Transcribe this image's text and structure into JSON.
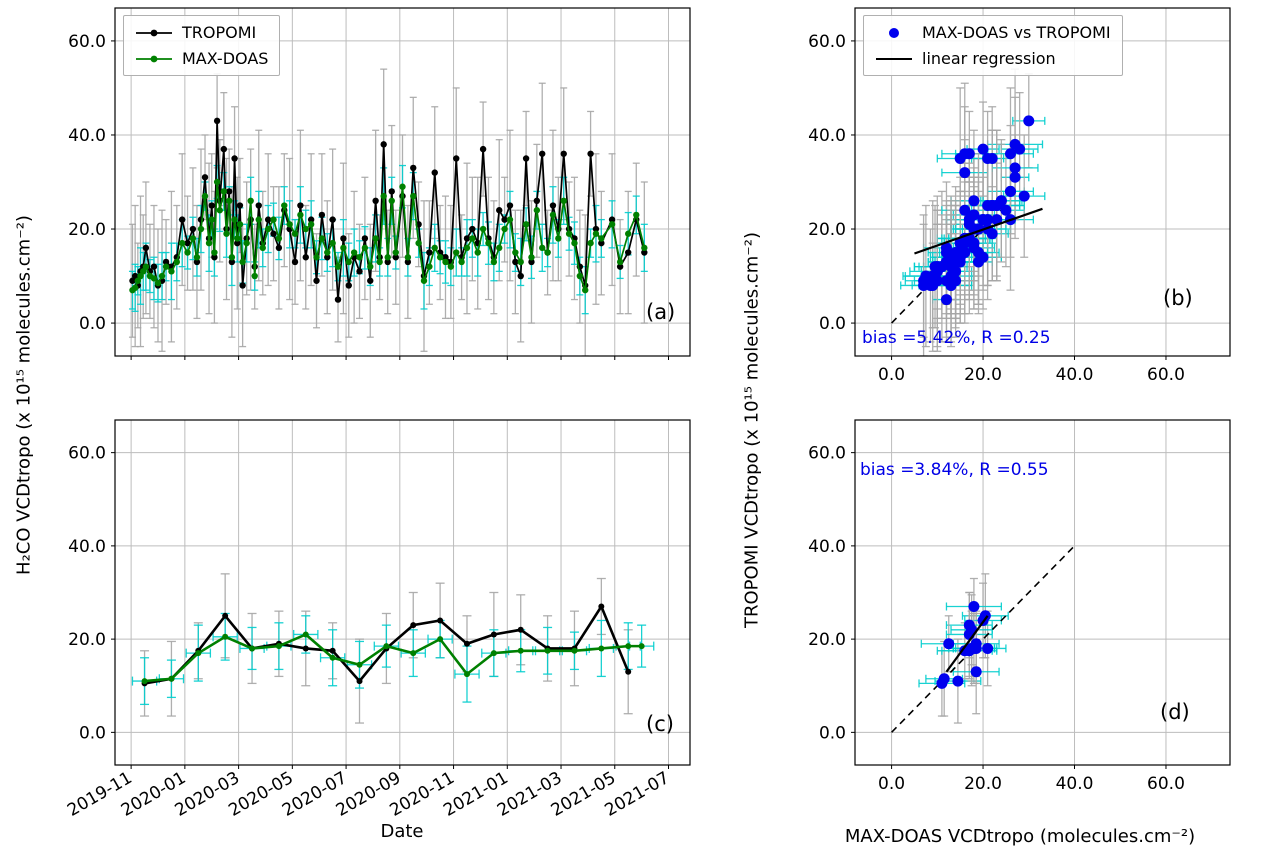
{
  "figure": {
    "ylabel_left": "H₂CO VCDtropo (x 10¹⁵ molecules.cm⁻²)",
    "ylabel_right": "TROPOMI VCDtropo (x 10¹⁵ molecules.cm⁻²)",
    "xlabel_left": "Date",
    "xlabel_right": "MAX-DOAS VCDtropo (molecules.cm⁻²)"
  },
  "panel_labels": {
    "a": "(a)",
    "b": "(b)",
    "c": "(c)",
    "d": "(d)"
  },
  "annotations": {
    "bias_b": "bias =5.42%, R =0.25",
    "bias_d": "bias =3.84%, R =0.55"
  },
  "legend_a": {
    "items": [
      {
        "label": "TROPOMI"
      },
      {
        "label": "MAX-DOAS"
      }
    ]
  },
  "legend_b": {
    "items": [
      {
        "label": "MAX-DOAS vs TROPOMI"
      },
      {
        "label": "linear regression"
      }
    ]
  },
  "colors": {
    "tropomi": "#000000",
    "maxdoas": "#008000",
    "scatter_points": "#0000ee",
    "tropomi_err": "#a6a6a6",
    "maxdoas_err": "#00cdcd",
    "grid": "#bdbdbd",
    "regression": "#000000",
    "identity": "#000000",
    "annotation_blue": "#0000e6"
  },
  "chart_data": [
    {
      "id": "a",
      "type": "line",
      "panel_label": "(a)",
      "xlim": [
        -0.6,
        20.8
      ],
      "ylim": [
        -7,
        67
      ],
      "xticks": [
        0,
        2,
        4,
        6,
        8,
        10,
        12,
        14,
        16,
        18,
        20
      ],
      "xtick_labels": [],
      "yticks": [
        0,
        20,
        40,
        60
      ],
      "ytick_labels": [
        "0.0",
        "20.0",
        "40.0",
        "60.0"
      ],
      "x": [
        0.05,
        0.15,
        0.25,
        0.35,
        0.45,
        0.55,
        0.7,
        0.85,
        1.0,
        1.15,
        1.3,
        1.5,
        1.7,
        1.9,
        2.1,
        2.3,
        2.45,
        2.6,
        2.75,
        2.9,
        3.0,
        3.1,
        3.2,
        3.3,
        3.45,
        3.55,
        3.65,
        3.75,
        3.85,
        3.95,
        4.05,
        4.15,
        4.3,
        4.45,
        4.6,
        4.75,
        4.9,
        5.1,
        5.3,
        5.5,
        5.7,
        5.9,
        6.1,
        6.3,
        6.5,
        6.7,
        6.9,
        7.1,
        7.3,
        7.5,
        7.7,
        7.9,
        8.1,
        8.3,
        8.5,
        8.7,
        8.9,
        9.1,
        9.25,
        9.4,
        9.55,
        9.7,
        9.85,
        10.1,
        10.3,
        10.5,
        10.7,
        10.9,
        11.1,
        11.3,
        11.5,
        11.7,
        11.9,
        12.1,
        12.3,
        12.5,
        12.7,
        12.9,
        13.1,
        13.3,
        13.5,
        13.7,
        13.9,
        14.1,
        14.3,
        14.5,
        14.7,
        14.9,
        15.1,
        15.3,
        15.5,
        15.7,
        15.9,
        16.1,
        16.3,
        16.5,
        16.7,
        16.9,
        17.1,
        17.3,
        17.5,
        17.9,
        18.2,
        18.5,
        18.8,
        19.1
      ],
      "series": [
        {
          "name": "TROPOMI",
          "color_key": "tropomi",
          "err_color_key": "tropomi_err",
          "y": [
            9,
            10,
            8,
            11,
            12,
            16,
            11,
            12,
            8,
            9,
            13,
            12,
            14,
            22,
            17,
            20,
            13,
            22,
            31,
            18,
            25,
            14,
            43,
            26,
            37,
            20,
            28,
            13,
            35,
            17,
            25,
            8,
            18,
            22,
            12,
            25,
            17,
            22,
            19,
            16,
            24,
            20,
            13,
            25,
            14,
            22,
            9,
            23,
            14,
            22,
            5,
            18,
            8,
            14,
            11,
            18,
            9,
            26,
            14,
            38,
            13,
            28,
            14,
            27,
            13,
            33,
            21,
            10,
            15,
            32,
            15,
            14,
            13,
            35,
            14,
            18,
            20,
            17,
            37,
            18,
            14,
            24,
            22,
            25,
            13,
            10,
            35,
            13,
            26,
            36,
            15,
            25,
            20,
            36,
            20,
            18,
            12,
            8,
            36,
            20,
            17,
            22,
            12,
            15,
            22,
            15
          ],
          "yerr_cycle": [
            12,
            15,
            9,
            16,
            11,
            14,
            10,
            13
          ]
        },
        {
          "name": "MAX-DOAS",
          "color_key": "maxdoas",
          "err_color_key": "maxdoas_err",
          "y": [
            7,
            7.5,
            9,
            10,
            11,
            12,
            10,
            9.5,
            8.5,
            10,
            12,
            11,
            13,
            17,
            15,
            18,
            14,
            20,
            27,
            17,
            22,
            15,
            30,
            24,
            28,
            19,
            26,
            14,
            22,
            18,
            21,
            13,
            17,
            26,
            10,
            22,
            16,
            20,
            22,
            18,
            25,
            21,
            19,
            23,
            20,
            21,
            14,
            18,
            15,
            17,
            12,
            16,
            13,
            15,
            14,
            16,
            12,
            18,
            13,
            27,
            14,
            26,
            15,
            29,
            14,
            27,
            17,
            9,
            12,
            16,
            14,
            13,
            12,
            15,
            13,
            16,
            18,
            15,
            20,
            17,
            13,
            16,
            20,
            22,
            15,
            13,
            21,
            14,
            24,
            16,
            15,
            23,
            18,
            26,
            19,
            17,
            10,
            7,
            17,
            19,
            18,
            21,
            13,
            19,
            23,
            16
          ],
          "yerr_cycle": [
            4,
            5,
            3,
            6,
            4,
            5,
            3.5,
            4.5
          ]
        }
      ]
    },
    {
      "id": "b",
      "type": "scatter",
      "panel_label": "(b)",
      "source": "a",
      "xlim": [
        -8,
        74
      ],
      "ylim": [
        -7,
        67
      ],
      "xticks": [
        0,
        20,
        40,
        60
      ],
      "xtick_labels": [
        "0.0",
        "20.0",
        "40.0",
        "60.0"
      ],
      "yticks": [
        0,
        20,
        40,
        60
      ],
      "ytick_labels": [
        "0.0",
        "20.0",
        "40.0",
        "60.0"
      ],
      "identity_line": {
        "x": [
          0,
          24
        ],
        "y": [
          0,
          24
        ]
      },
      "regression_line": {
        "x": [
          5,
          33
        ],
        "y": [
          14.8,
          24.3
        ]
      },
      "stats": {
        "bias_percent": 5.42,
        "R": 0.25
      }
    },
    {
      "id": "c",
      "type": "line",
      "panel_label": "(c)",
      "xlim": [
        -0.6,
        20.8
      ],
      "ylim": [
        -7,
        67
      ],
      "xticks": [
        0,
        2,
        4,
        6,
        8,
        10,
        12,
        14,
        16,
        18,
        20
      ],
      "xtick_labels": [
        "2019-11",
        "2020-01",
        "2020-03",
        "2020-05",
        "2020-07",
        "2020-09",
        "2020-11",
        "2021-01",
        "2021-03",
        "2021-05",
        "2021-07"
      ],
      "rotate_xticks": -30,
      "yticks": [
        0,
        20,
        40,
        60
      ],
      "ytick_labels": [
        "0.0",
        "20.0",
        "40.0",
        "60.0"
      ],
      "series": [
        {
          "name": "TROPOMI",
          "color_key": "tropomi",
          "err_color_key": "tropomi_err",
          "x": [
            0.5,
            1.5,
            2.5,
            3.5,
            4.5,
            5.5,
            6.5,
            7.5,
            8.5,
            9.5,
            10.5,
            11.5,
            12.5,
            13.5,
            14.5,
            15.5,
            16.5,
            17.5,
            18.5
          ],
          "y": [
            10.5,
            11.5,
            17.5,
            25,
            18,
            19,
            18,
            17.5,
            11,
            18,
            23,
            24,
            19,
            21,
            22,
            18,
            18,
            27,
            13
          ],
          "yerr_cycle": [
            7,
            8,
            6,
            9,
            7.5
          ]
        },
        {
          "name": "MAX-DOAS",
          "color_key": "maxdoas",
          "err_color_key": "maxdoas_err",
          "x": [
            0.5,
            1.5,
            2.5,
            3.5,
            4.5,
            5.5,
            6.5,
            7.5,
            8.5,
            9.5,
            10.5,
            11.5,
            12.5,
            13.5,
            14.5,
            15.5,
            16.5,
            17.5,
            18.5,
            19.0
          ],
          "y": [
            11,
            11.5,
            17,
            20.5,
            18,
            18.5,
            21,
            16,
            14.5,
            18.5,
            17,
            20,
            12.5,
            17,
            17.5,
            17.5,
            17.5,
            18,
            18.5,
            18.5
          ],
          "yerr_cycle": [
            5,
            4,
            6,
            5,
            4.5
          ],
          "xerr": 0.45
        }
      ]
    },
    {
      "id": "d",
      "type": "scatter",
      "panel_label": "(d)",
      "source": "c",
      "xlim": [
        -8,
        74
      ],
      "ylim": [
        -7,
        67
      ],
      "xticks": [
        0,
        20,
        40,
        60
      ],
      "xtick_labels": [
        "0.0",
        "20.0",
        "40.0",
        "60.0"
      ],
      "yticks": [
        0,
        20,
        40,
        60
      ],
      "ytick_labels": [
        "0.0",
        "20.0",
        "40.0",
        "60.0"
      ],
      "identity_line": {
        "x": [
          0,
          40
        ],
        "y": [
          0,
          40
        ]
      },
      "regression_line": {
        "x": [
          12,
          21
        ],
        "y": [
          13,
          25
        ]
      },
      "stats": {
        "bias_percent": 3.84,
        "R": 0.55
      }
    }
  ]
}
